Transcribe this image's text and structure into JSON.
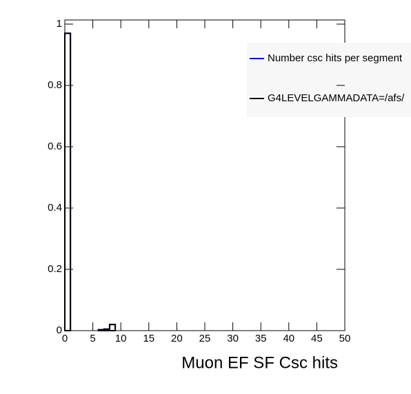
{
  "chart_data": {
    "type": "histogram",
    "xlabel": "Muon EF SF Csc hits",
    "bins": [
      0,
      1,
      2,
      3,
      4,
      5,
      6,
      7,
      8,
      9,
      10,
      11,
      12,
      13,
      14,
      15,
      16,
      17,
      18,
      19,
      20,
      21,
      22,
      23,
      24,
      25,
      26,
      27,
      28,
      29,
      30,
      31,
      32,
      33,
      34,
      35,
      36,
      37,
      38,
      39,
      40,
      41,
      42,
      43,
      44,
      45,
      46,
      47,
      48,
      49,
      50
    ],
    "series": [
      {
        "name": "Number csc hits per segment",
        "color": "#0000cc",
        "values": [
          0.97,
          0,
          0,
          0,
          0,
          0,
          0.003,
          0.005,
          0.02,
          0,
          0,
          0,
          0,
          0,
          0,
          0,
          0,
          0,
          0,
          0,
          0,
          0,
          0,
          0,
          0,
          0,
          0,
          0,
          0,
          0,
          0,
          0,
          0,
          0,
          0,
          0,
          0,
          0,
          0,
          0,
          0,
          0,
          0,
          0,
          0,
          0,
          0,
          0,
          0,
          0
        ]
      },
      {
        "name": "G4LEVELGAMMADATA=/afs/",
        "color": "#000000",
        "values": [
          0.97,
          0,
          0,
          0,
          0,
          0,
          0.003,
          0.005,
          0.02,
          0,
          0,
          0,
          0,
          0,
          0,
          0,
          0,
          0,
          0,
          0,
          0,
          0,
          0,
          0,
          0,
          0,
          0,
          0,
          0,
          0,
          0,
          0,
          0,
          0,
          0,
          0,
          0,
          0,
          0,
          0,
          0,
          0,
          0,
          0,
          0,
          0,
          0,
          0,
          0,
          0
        ]
      }
    ],
    "xlim": [
      0,
      50
    ],
    "xticks": [
      0,
      5,
      10,
      15,
      20,
      25,
      30,
      35,
      40,
      45,
      50
    ],
    "ylim": [
      0,
      1
    ],
    "yticks": [
      0,
      0.2,
      0.4,
      0.6,
      0.8,
      1
    ]
  }
}
